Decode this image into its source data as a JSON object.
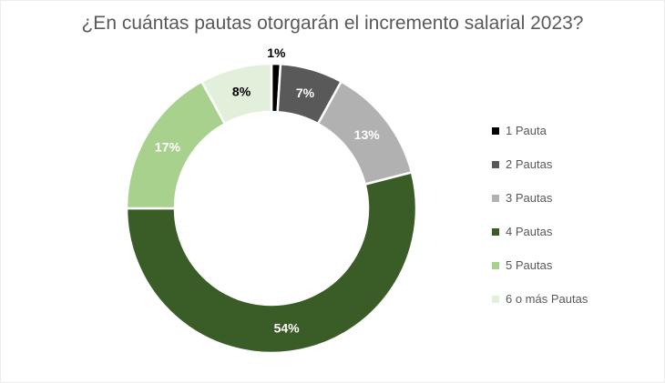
{
  "chart_data": {
    "type": "pie",
    "subtype": "donut",
    "title": "¿En cuántas pautas otorgarán el incremento salarial 2023?",
    "categories": [
      "1 Pauta",
      "2 Pautas",
      "3 Pautas",
      "4 Pautas",
      "5 Pautas",
      "6 o más Pautas"
    ],
    "values": [
      1,
      7,
      13,
      54,
      17,
      8
    ],
    "unit": "%",
    "data_labels": [
      "1%",
      "7%",
      "13%",
      "54%",
      "17%",
      "8%"
    ],
    "colors": [
      "#000000",
      "#595959",
      "#b1b1b1",
      "#3a5d28",
      "#a9d18e",
      "#e2efda"
    ],
    "data_label_colors": [
      "#000000",
      "#ffffff",
      "#ffffff",
      "#ffffff",
      "#ffffff",
      "#000000"
    ],
    "label_positions": [
      "outside",
      "inside",
      "inside",
      "inside",
      "inside",
      "inside"
    ],
    "start_angle_deg": 0,
    "direction": "clockwise",
    "legend_position": "right",
    "title_color": "#595959",
    "legend_text_color": "#595959",
    "background_color": "#ffffff"
  }
}
